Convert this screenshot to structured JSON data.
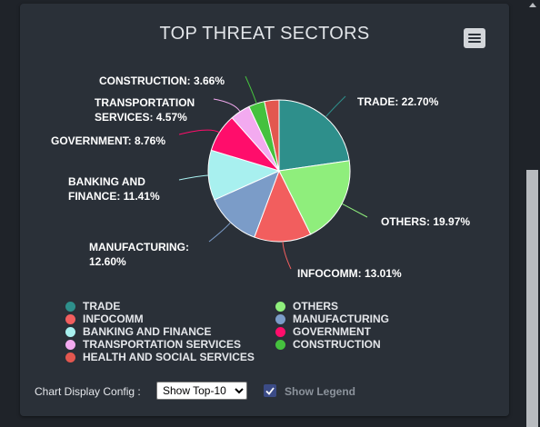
{
  "chart_data": {
    "type": "pie",
    "title": "TOP THREAT SECTORS",
    "slices": [
      {
        "label": "TRADE",
        "value": 22.7,
        "color": "#2e8f8b",
        "callout": "TRADE: 22.70%"
      },
      {
        "label": "OTHERS",
        "value": 19.97,
        "color": "#8fee7c",
        "callout": "OTHERS: 19.97%"
      },
      {
        "label": "INFOCOMM",
        "value": 13.01,
        "color": "#f25e5e",
        "callout": "INFOCOMM: 13.01%"
      },
      {
        "label": "MANUFACTURING",
        "value": 12.6,
        "color": "#7b9cc8",
        "callout": "MANUFACTURING: 12.60%"
      },
      {
        "label": "BANKING AND FINANCE",
        "value": 11.41,
        "color": "#a8f0ef",
        "callout": "BANKING AND FINANCE: 11.41%"
      },
      {
        "label": "GOVERNMENT",
        "value": 8.76,
        "color": "#ff0d6b",
        "callout": "GOVERNMENT: 8.76%"
      },
      {
        "label": "TRANSPORTATION SERVICES",
        "value": 4.57,
        "color": "#f3aaf0",
        "callout": "TRANSPORTATION SERVICES: 4.57%"
      },
      {
        "label": "CONSTRUCTION",
        "value": 3.66,
        "color": "#45c13e",
        "callout": "CONSTRUCTION: 3.66%"
      },
      {
        "label": "HEALTH AND SOCIAL SERVICES",
        "value": 3.32,
        "color": "#e3574f",
        "callout": ""
      }
    ],
    "legend": [
      "TRADE",
      "OTHERS",
      "INFOCOMM",
      "MANUFACTURING",
      "BANKING AND FINANCE",
      "GOVERNMENT",
      "TRANSPORTATION SERVICES",
      "CONSTRUCTION",
      "HEALTH AND SOCIAL SERVICES"
    ],
    "legend_placement": "bottom"
  },
  "controls": {
    "config_label": "Chart Display Config :",
    "select_value": "Show Top-10",
    "select_options": [
      "Show Top-10"
    ],
    "show_legend_label": "Show Legend",
    "show_legend_checked": true
  },
  "menu_icon": "hamburger-menu-icon"
}
